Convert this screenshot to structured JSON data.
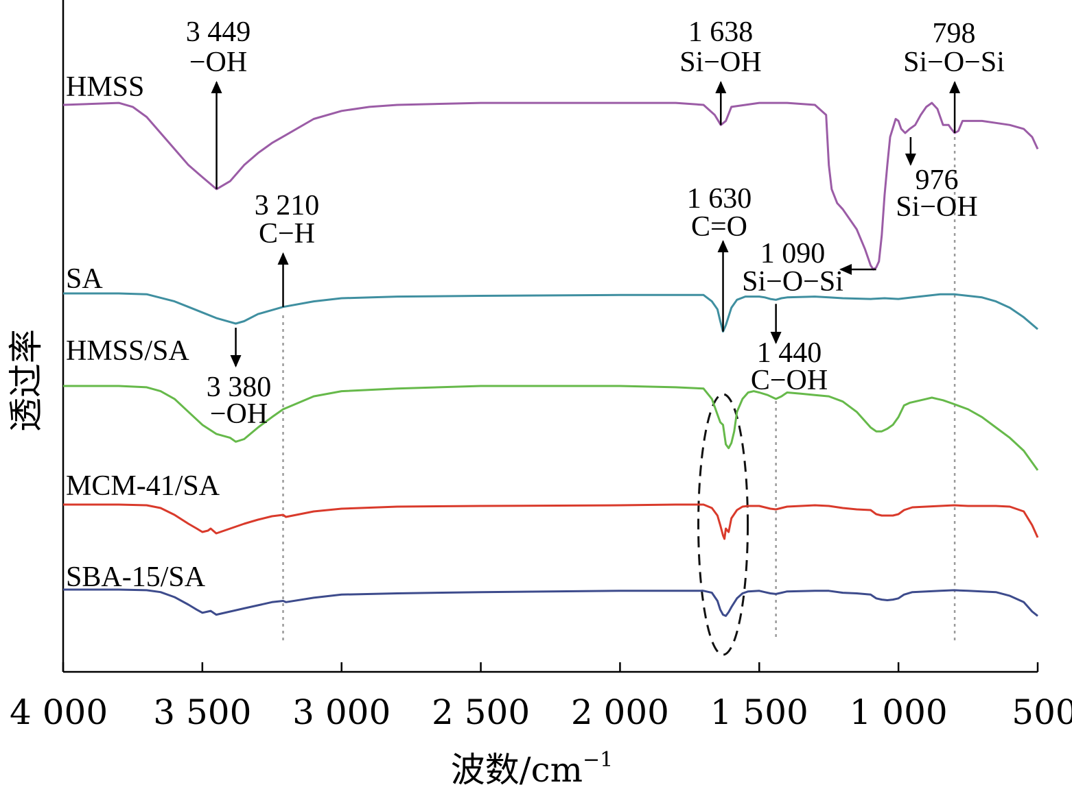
{
  "chart_data": {
    "type": "line",
    "xlabel": "波数/cm",
    "xlabel_sup": "−1",
    "ylabel": "透过率",
    "xlim": [
      4000,
      500
    ],
    "x_reversed": true,
    "grid": false,
    "legend": "inline labels on left",
    "x_ticks": [
      {
        "value": 4000,
        "label": "4 000"
      },
      {
        "value": 3500,
        "label": "3 500"
      },
      {
        "value": 3000,
        "label": "3 000"
      },
      {
        "value": 2500,
        "label": "2 500"
      },
      {
        "value": 2000,
        "label": "2 000"
      },
      {
        "value": 1500,
        "label": "1 500"
      },
      {
        "value": 1000,
        "label": "1 000"
      },
      {
        "value": 500,
        "label": "500"
      }
    ],
    "series": [
      {
        "name": "HMSS",
        "color": "#9b5ca6",
        "x": [
          4000,
          3800,
          3750,
          3700,
          3650,
          3600,
          3550,
          3500,
          3449,
          3400,
          3350,
          3300,
          3250,
          3200,
          3100,
          3000,
          2900,
          2800,
          2500,
          2000,
          1800,
          1700,
          1660,
          1638,
          1620,
          1600,
          1500,
          1400,
          1300,
          1260,
          1250,
          1240,
          1220,
          1200,
          1180,
          1150,
          1120,
          1100,
          1090,
          1080,
          1070,
          1060,
          1050,
          1040,
          1030,
          1010,
          1000,
          990,
          976,
          960,
          940,
          920,
          900,
          880,
          860,
          840,
          820,
          810,
          798,
          785,
          770,
          750,
          700,
          650,
          600,
          550,
          520,
          500
        ],
        "y": [
          0.9,
          0.91,
          0.89,
          0.84,
          0.76,
          0.68,
          0.6,
          0.54,
          0.48,
          0.52,
          0.6,
          0.66,
          0.71,
          0.75,
          0.83,
          0.87,
          0.89,
          0.9,
          0.91,
          0.91,
          0.91,
          0.9,
          0.85,
          0.8,
          0.82,
          0.89,
          0.91,
          0.91,
          0.9,
          0.85,
          0.6,
          0.48,
          0.41,
          0.38,
          0.34,
          0.28,
          0.18,
          0.1,
          0.08,
          0.09,
          0.12,
          0.25,
          0.45,
          0.6,
          0.74,
          0.83,
          0.82,
          0.78,
          0.76,
          0.78,
          0.8,
          0.85,
          0.89,
          0.91,
          0.88,
          0.8,
          0.8,
          0.78,
          0.76,
          0.77,
          0.82,
          0.82,
          0.82,
          0.81,
          0.8,
          0.78,
          0.74,
          0.68
        ]
      },
      {
        "name": "SA",
        "color": "#3f8fa0",
        "x": [
          4000,
          3800,
          3700,
          3600,
          3550,
          3500,
          3450,
          3400,
          3380,
          3350,
          3300,
          3250,
          3210,
          3100,
          3000,
          2800,
          2500,
          2000,
          1800,
          1700,
          1670,
          1650,
          1640,
          1630,
          1620,
          1600,
          1580,
          1550,
          1500,
          1480,
          1460,
          1440,
          1420,
          1400,
          1300,
          1250,
          1200,
          1100,
          1050,
          1000,
          950,
          900,
          850,
          800,
          750,
          700,
          650,
          600,
          550,
          500
        ],
        "y": [
          0.9,
          0.9,
          0.89,
          0.8,
          0.73,
          0.66,
          0.59,
          0.54,
          0.52,
          0.55,
          0.64,
          0.69,
          0.73,
          0.8,
          0.84,
          0.86,
          0.87,
          0.88,
          0.88,
          0.88,
          0.8,
          0.7,
          0.55,
          0.42,
          0.5,
          0.72,
          0.82,
          0.86,
          0.86,
          0.85,
          0.83,
          0.82,
          0.84,
          0.85,
          0.86,
          0.85,
          0.84,
          0.83,
          0.84,
          0.83,
          0.85,
          0.87,
          0.89,
          0.89,
          0.87,
          0.85,
          0.8,
          0.72,
          0.6,
          0.45
        ]
      },
      {
        "name": "HMSS/SA",
        "color": "#66b94a",
        "x": [
          4000,
          3800,
          3700,
          3650,
          3600,
          3550,
          3500,
          3450,
          3400,
          3380,
          3350,
          3300,
          3250,
          3210,
          3100,
          3000,
          2800,
          2500,
          2000,
          1800,
          1700,
          1670,
          1650,
          1640,
          1630,
          1620,
          1610,
          1600,
          1590,
          1580,
          1560,
          1540,
          1520,
          1500,
          1470,
          1440,
          1420,
          1400,
          1350,
          1300,
          1250,
          1200,
          1150,
          1100,
          1080,
          1060,
          1040,
          1020,
          1000,
          980,
          960,
          940,
          920,
          900,
          880,
          860,
          840,
          800,
          750,
          700,
          650,
          600,
          550,
          500
        ],
        "y": [
          0.9,
          0.9,
          0.89,
          0.86,
          0.8,
          0.7,
          0.6,
          0.53,
          0.5,
          0.47,
          0.49,
          0.58,
          0.66,
          0.72,
          0.82,
          0.86,
          0.88,
          0.9,
          0.9,
          0.89,
          0.88,
          0.8,
          0.68,
          0.62,
          0.6,
          0.45,
          0.42,
          0.46,
          0.55,
          0.7,
          0.8,
          0.85,
          0.86,
          0.85,
          0.83,
          0.8,
          0.82,
          0.85,
          0.84,
          0.83,
          0.82,
          0.78,
          0.7,
          0.58,
          0.55,
          0.55,
          0.57,
          0.6,
          0.66,
          0.75,
          0.77,
          0.78,
          0.79,
          0.8,
          0.81,
          0.8,
          0.79,
          0.76,
          0.72,
          0.66,
          0.58,
          0.5,
          0.4,
          0.25
        ]
      },
      {
        "name": "MCM-41/SA",
        "color": "#d93a2b",
        "x": [
          4000,
          3800,
          3700,
          3650,
          3600,
          3550,
          3520,
          3500,
          3480,
          3470,
          3450,
          3400,
          3350,
          3300,
          3250,
          3210,
          3200,
          3100,
          3000,
          2800,
          2500,
          2000,
          1800,
          1700,
          1670,
          1650,
          1640,
          1630,
          1625,
          1620,
          1610,
          1600,
          1580,
          1560,
          1540,
          1500,
          1480,
          1460,
          1440,
          1420,
          1400,
          1300,
          1250,
          1200,
          1150,
          1100,
          1080,
          1060,
          1040,
          1020,
          1000,
          980,
          950,
          900,
          850,
          800,
          750,
          700,
          650,
          600,
          550,
          520,
          500
        ],
        "y": [
          0.9,
          0.9,
          0.89,
          0.85,
          0.75,
          0.62,
          0.55,
          0.5,
          0.52,
          0.55,
          0.48,
          0.55,
          0.62,
          0.68,
          0.73,
          0.75,
          0.72,
          0.8,
          0.84,
          0.87,
          0.88,
          0.89,
          0.9,
          0.9,
          0.85,
          0.74,
          0.6,
          0.45,
          0.4,
          0.55,
          0.5,
          0.7,
          0.82,
          0.87,
          0.88,
          0.88,
          0.86,
          0.84,
          0.83,
          0.85,
          0.87,
          0.89,
          0.88,
          0.85,
          0.83,
          0.82,
          0.76,
          0.74,
          0.74,
          0.74,
          0.76,
          0.82,
          0.86,
          0.87,
          0.88,
          0.89,
          0.88,
          0.88,
          0.88,
          0.87,
          0.8,
          0.6,
          0.42
        ]
      },
      {
        "name": "SBA-15/SA",
        "color": "#3d4b8c",
        "x": [
          4000,
          3800,
          3700,
          3650,
          3600,
          3550,
          3520,
          3500,
          3480,
          3470,
          3450,
          3400,
          3350,
          3300,
          3250,
          3210,
          3200,
          3100,
          3000,
          2800,
          2500,
          2000,
          1800,
          1700,
          1670,
          1650,
          1640,
          1630,
          1620,
          1610,
          1600,
          1580,
          1560,
          1540,
          1500,
          1480,
          1460,
          1440,
          1420,
          1400,
          1300,
          1250,
          1200,
          1150,
          1100,
          1080,
          1060,
          1040,
          1020,
          1000,
          980,
          950,
          900,
          850,
          800,
          750,
          700,
          650,
          600,
          550,
          520,
          500
        ],
        "y": [
          0.9,
          0.9,
          0.89,
          0.86,
          0.78,
          0.66,
          0.58,
          0.53,
          0.55,
          0.56,
          0.5,
          0.55,
          0.6,
          0.65,
          0.7,
          0.72,
          0.7,
          0.77,
          0.82,
          0.84,
          0.86,
          0.88,
          0.88,
          0.88,
          0.85,
          0.72,
          0.58,
          0.5,
          0.48,
          0.54,
          0.62,
          0.76,
          0.84,
          0.87,
          0.88,
          0.86,
          0.84,
          0.83,
          0.85,
          0.87,
          0.88,
          0.88,
          0.85,
          0.84,
          0.82,
          0.76,
          0.74,
          0.73,
          0.74,
          0.76,
          0.82,
          0.86,
          0.87,
          0.88,
          0.89,
          0.88,
          0.87,
          0.86,
          0.8,
          0.7,
          0.55,
          0.48
        ]
      }
    ],
    "annotations": [
      {
        "series": "HMSS",
        "x": 3449,
        "lines": [
          "3 449",
          "−OH"
        ],
        "dir": "up"
      },
      {
        "series": "HMSS",
        "x": 1638,
        "lines": [
          "1 638",
          "Si−OH"
        ],
        "dir": "up"
      },
      {
        "series": "HMSS",
        "x": 798,
        "lines": [
          "798",
          "Si−O−Si"
        ],
        "dir": "up"
      },
      {
        "series": "HMSS",
        "x": 976,
        "lines": [
          "976",
          "Si−OH"
        ],
        "dir": "down"
      },
      {
        "series": "HMSS",
        "x": 1090,
        "lines": [
          "1 090",
          "Si−O−Si"
        ],
        "dir": "left"
      },
      {
        "series": "SA",
        "x": 3210,
        "lines": [
          "3 210",
          "C−H"
        ],
        "dir": "up"
      },
      {
        "series": "SA",
        "x": 1630,
        "lines": [
          "1 630",
          "C=O"
        ],
        "dir": "up"
      },
      {
        "series": "SA",
        "x": 3380,
        "lines": [
          "3 380",
          "−OH"
        ],
        "dir": "down"
      },
      {
        "series": "SA",
        "x": 1440,
        "lines": [
          "1 440",
          "C−OH"
        ],
        "dir": "down"
      }
    ],
    "dotted_guides": [
      3210,
      1440,
      798
    ]
  }
}
